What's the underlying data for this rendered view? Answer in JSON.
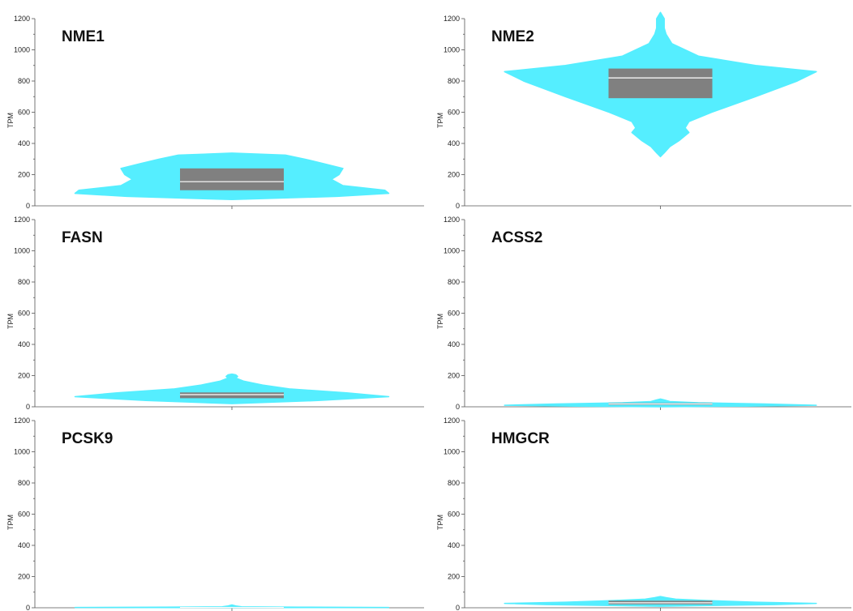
{
  "chart_data": [
    {
      "type": "violin",
      "title": "NME1",
      "ylabel": "TPM",
      "ylim": [
        0,
        1200
      ],
      "yticks": [
        0,
        200,
        400,
        600,
        800,
        1000,
        1200
      ],
      "colors": {
        "violin": "#55eeff",
        "box": "#808080",
        "median": "#ffffff"
      },
      "box": {
        "q1": 100,
        "median": 155,
        "q3": 240
      },
      "violin_profile": [
        [
          40,
          0.0
        ],
        [
          60,
          0.55
        ],
        [
          80,
          0.82
        ],
        [
          100,
          0.8
        ],
        [
          130,
          0.58
        ],
        [
          170,
          0.52
        ],
        [
          200,
          0.56
        ],
        [
          240,
          0.58
        ],
        [
          270,
          0.48
        ],
        [
          300,
          0.38
        ],
        [
          325,
          0.28
        ],
        [
          338,
          0.0
        ]
      ]
    },
    {
      "type": "violin",
      "title": "NME2",
      "ylabel": "TPM",
      "ylim": [
        0,
        1200
      ],
      "yticks": [
        0,
        200,
        400,
        600,
        800,
        1000,
        1200
      ],
      "colors": {
        "violin": "#55eeff",
        "box": "#808080",
        "median": "#ffffff"
      },
      "box": {
        "q1": 690,
        "median": 820,
        "q3": 880
      },
      "violin_profile": [
        [
          315,
          0.0
        ],
        [
          340,
          0.02
        ],
        [
          380,
          0.05
        ],
        [
          420,
          0.1
        ],
        [
          470,
          0.15
        ],
        [
          500,
          0.13
        ],
        [
          540,
          0.15
        ],
        [
          600,
          0.27
        ],
        [
          700,
          0.5
        ],
        [
          800,
          0.72
        ],
        [
          860,
          0.82
        ],
        [
          900,
          0.5
        ],
        [
          960,
          0.2
        ],
        [
          1040,
          0.06
        ],
        [
          1100,
          0.03
        ],
        [
          1140,
          0.02
        ],
        [
          1200,
          0.02
        ],
        [
          1240,
          0.0
        ]
      ]
    },
    {
      "type": "violin",
      "title": "FASN",
      "ylabel": "TPM",
      "ylim": [
        0,
        1200
      ],
      "yticks": [
        0,
        200,
        400,
        600,
        800,
        1000,
        1200
      ],
      "colors": {
        "violin": "#55eeff",
        "box": "#808080",
        "median": "#ffffff"
      },
      "box": {
        "q1": 55,
        "median": 78,
        "q3": 92
      },
      "violin_profile": [
        [
          20,
          0.0
        ],
        [
          40,
          0.45
        ],
        [
          65,
          0.82
        ],
        [
          90,
          0.6
        ],
        [
          115,
          0.3
        ],
        [
          140,
          0.16
        ],
        [
          165,
          0.06
        ],
        [
          185,
          0.02
        ],
        [
          195,
          0.03
        ],
        [
          205,
          0.02
        ],
        [
          210,
          0.0
        ]
      ]
    },
    {
      "type": "violin",
      "title": "ACSS2",
      "ylabel": "TPM",
      "ylim": [
        0,
        1200
      ],
      "yticks": [
        0,
        200,
        400,
        600,
        800,
        1000,
        1200
      ],
      "colors": {
        "violin": "#55eeff",
        "box": "#808080",
        "median": "#ffffff"
      },
      "box": {
        "q1": 12,
        "median": 18,
        "q3": 24
      },
      "violin_profile": [
        [
          0,
          0.0
        ],
        [
          4,
          0.45
        ],
        [
          10,
          0.82
        ],
        [
          18,
          0.55
        ],
        [
          26,
          0.2
        ],
        [
          34,
          0.05
        ],
        [
          44,
          0.02
        ],
        [
          50,
          0.0
        ]
      ]
    },
    {
      "type": "violin",
      "title": "PCSK9",
      "ylabel": "TPM",
      "ylim": [
        0,
        1200
      ],
      "yticks": [
        0,
        200,
        400,
        600,
        800,
        1000,
        1200
      ],
      "colors": {
        "violin": "#55eeff",
        "box": "#808080",
        "median": "#ffffff"
      },
      "box": {
        "q1": 1,
        "median": 2,
        "q3": 3
      },
      "violin_profile": [
        [
          0,
          0.0
        ],
        [
          1,
          0.4
        ],
        [
          2,
          0.82
        ],
        [
          4,
          0.35
        ],
        [
          7,
          0.05
        ],
        [
          12,
          0.02
        ],
        [
          18,
          0.0
        ]
      ]
    },
    {
      "type": "violin",
      "title": "HMGCR",
      "ylabel": "TPM",
      "ylim": [
        0,
        1200
      ],
      "yticks": [
        0,
        200,
        400,
        600,
        800,
        1000,
        1200
      ],
      "colors": {
        "violin": "#55eeff",
        "box": "#808080",
        "median": "#ffffff"
      },
      "box": {
        "q1": 22,
        "median": 32,
        "q3": 45
      },
      "violin_profile": [
        [
          10,
          0.0
        ],
        [
          20,
          0.6
        ],
        [
          28,
          0.82
        ],
        [
          36,
          0.5
        ],
        [
          46,
          0.25
        ],
        [
          55,
          0.08
        ],
        [
          65,
          0.03
        ],
        [
          72,
          0.0
        ]
      ]
    }
  ]
}
